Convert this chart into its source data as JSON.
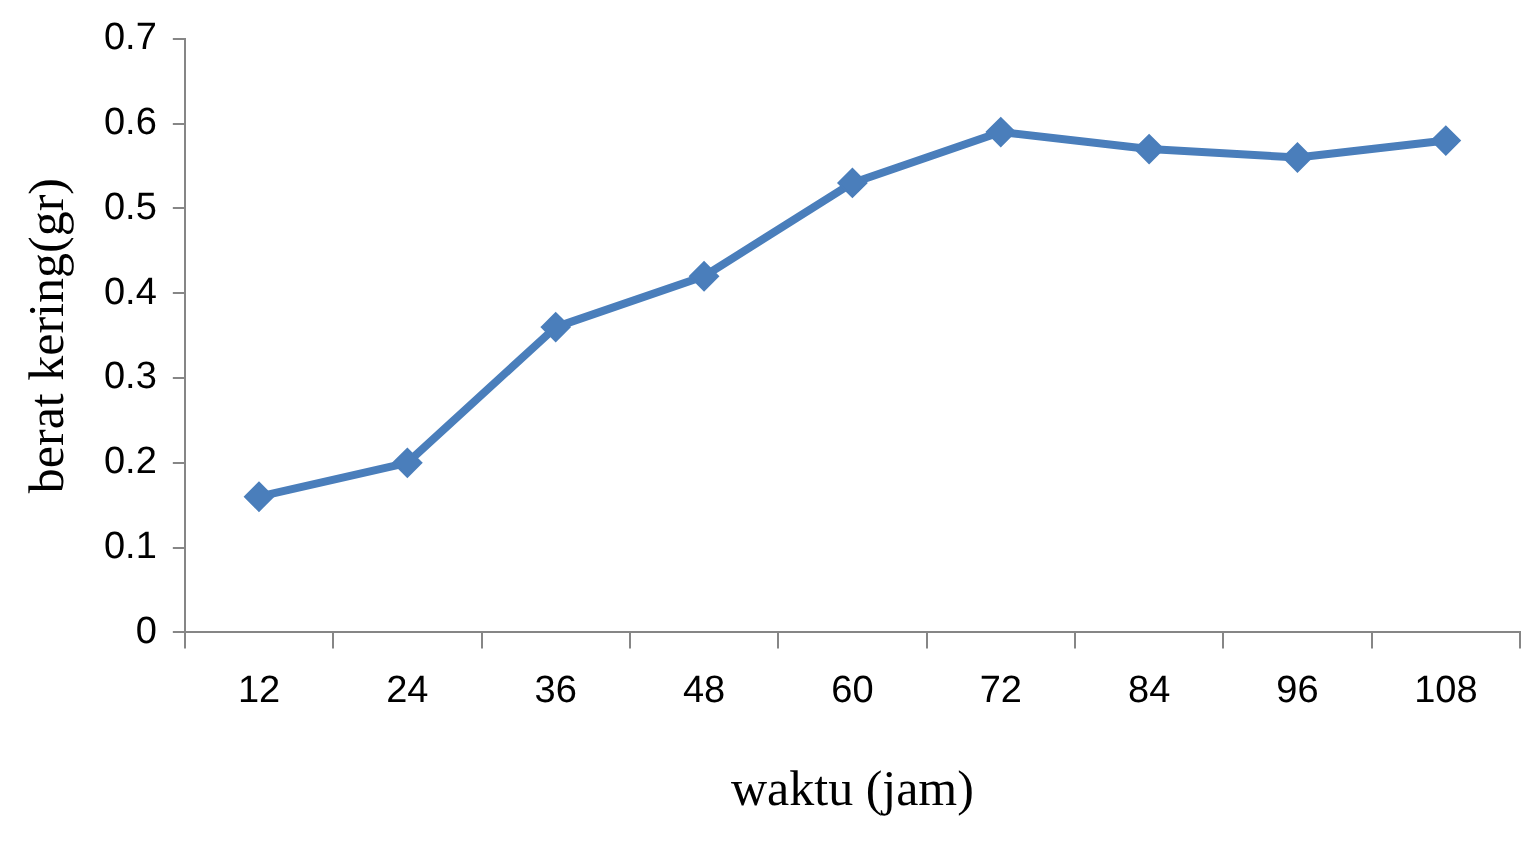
{
  "chart_data": {
    "type": "line",
    "xlabel": "waktu (jam)",
    "ylabel": "berat kering(gr)",
    "categories": [
      "12",
      "24",
      "36",
      "48",
      "60",
      "72",
      "84",
      "96",
      "108"
    ],
    "series": [
      {
        "color": "#4a7ebb",
        "values": [
          0.16,
          0.2,
          0.36,
          0.42,
          0.53,
          0.59,
          0.57,
          0.56,
          0.58
        ]
      }
    ],
    "ylim": [
      0,
      0.7
    ],
    "yticks": [
      0,
      0.1,
      0.2,
      0.3,
      0.4,
      0.5,
      0.6,
      0.7
    ],
    "grid": false,
    "legend": false,
    "marker": "diamond",
    "line_style": "solid"
  }
}
